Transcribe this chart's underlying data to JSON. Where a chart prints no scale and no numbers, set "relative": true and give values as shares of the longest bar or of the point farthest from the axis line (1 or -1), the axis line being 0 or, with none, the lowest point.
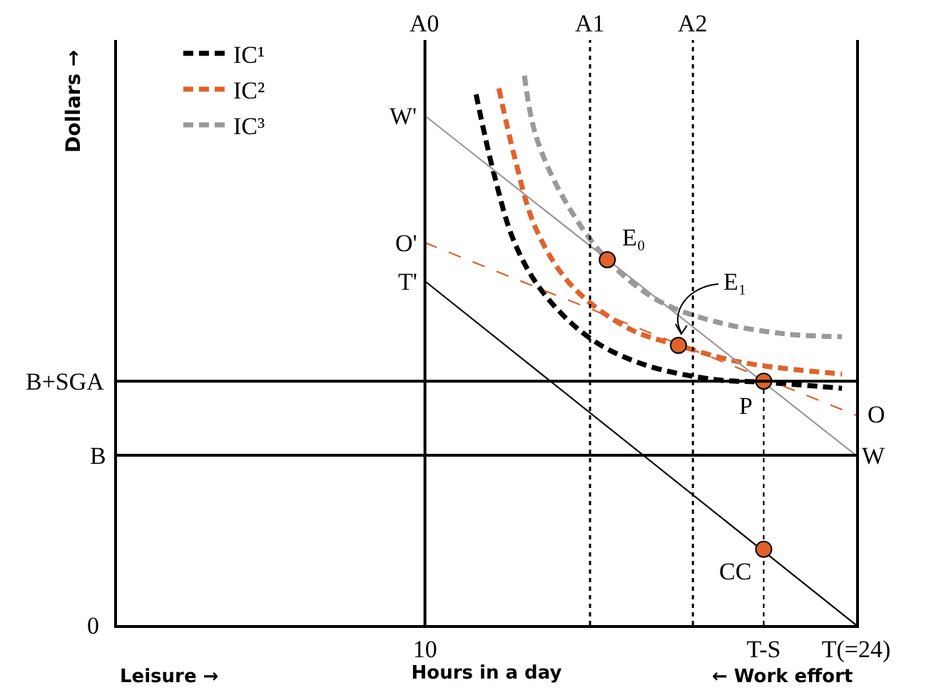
{
  "chart_data": {
    "type": "line",
    "relative": true,
    "xlabel": "Hours in a day",
    "ylabel": "Dollars →",
    "xlim": [
      0,
      24
    ],
    "xticks": [
      {
        "value": 10,
        "label": "10"
      },
      {
        "value": 21,
        "label": "T-S"
      },
      {
        "value": 24,
        "label": "T(=24)"
      }
    ],
    "legend": "top left",
    "grid": false,
    "series": [
      {
        "name": "IC¹",
        "color": "#000000",
        "line_style": "dashed",
        "x": [
          11.66,
          12.22,
          12.91,
          13.84,
          15.36,
          17.07,
          19.38,
          21,
          23.54
        ],
        "values": [
          0.966,
          0.826,
          0.696,
          0.605,
          0.522,
          0.475,
          0.447,
          0.442,
          0.431
        ]
      },
      {
        "name": "IC²",
        "color": "#e0622a",
        "line_style": "dashed",
        "x": [
          12.4,
          12.91,
          13.6,
          14.76,
          16.61,
          18.23,
          20.3,
          23.54
        ],
        "values": [
          0.977,
          0.852,
          0.722,
          0.618,
          0.54,
          0.509,
          0.478,
          0.457
        ]
      },
      {
        "name": "IC³",
        "color": "#999999",
        "line_style": "dashed",
        "x": [
          13.23,
          13.6,
          14.53,
          15.92,
          17.53,
          19.38,
          21.69,
          23.54
        ],
        "values": [
          1,
          0.891,
          0.774,
          0.665,
          0.592,
          0.553,
          0.53,
          0.525
        ]
      },
      {
        "color": "#999999",
        "line_style": "solid",
        "x": [
          10,
          24
        ],
        "values": [
          0.927,
          0.309
        ]
      },
      {
        "color": "#e0622a",
        "line_style": "dashed",
        "x": [
          10,
          24
        ],
        "values": [
          0.696,
          0.382
        ]
      },
      {
        "color": "#000000",
        "line_style": "solid",
        "x": [
          10,
          24
        ],
        "values": [
          0.626,
          0
        ]
      },
      {
        "color": "#000000",
        "line_style": "dotted",
        "x": [
          21,
          21
        ],
        "values": [
          0,
          0.444
        ]
      },
      {
        "type": "scatter",
        "marker": "circle",
        "color": "#e0622a",
        "x": [
          15.92,
          18.23,
          21,
          21
        ],
        "values": [
          0.665,
          0.509,
          0.444,
          0.138
        ]
      }
    ],
    "ref_lines": [
      {
        "axis": "y",
        "value": 0.444,
        "label": "B+SGA",
        "color": "#000000",
        "line_style": "solid"
      },
      {
        "axis": "y",
        "value": 0.309,
        "label": "B",
        "color": "#000000",
        "line_style": "solid"
      },
      {
        "axis": "x",
        "value": 10,
        "label": "A0",
        "color": "#000000",
        "line_style": "solid"
      },
      {
        "axis": "x",
        "value": 15.36,
        "label": "A1",
        "color": "#000000",
        "line_style": "dotted"
      },
      {
        "axis": "x",
        "value": 18.7,
        "label": "A2",
        "color": "#000000",
        "line_style": "dotted"
      }
    ],
    "annotations": [
      {
        "text": "E₀",
        "x": 15.92,
        "y": 0.665
      },
      {
        "text": "E₁",
        "x": 18.23,
        "y": 0.509
      },
      {
        "text": "P",
        "x": 21,
        "y": 0.444
      },
      {
        "text": "CC",
        "x": 21,
        "y": 0.138
      },
      {
        "text": "W'",
        "x": 10,
        "y": 0.927
      },
      {
        "text": "O'",
        "x": 10,
        "y": 0.696
      },
      {
        "text": "T'",
        "x": 10,
        "y": 0.626
      },
      {
        "text": "O",
        "x": 24,
        "y": 0.382
      },
      {
        "text": "W",
        "x": 24,
        "y": 0.309
      },
      "0",
      "Leisure →",
      "← Work effort"
    ]
  }
}
